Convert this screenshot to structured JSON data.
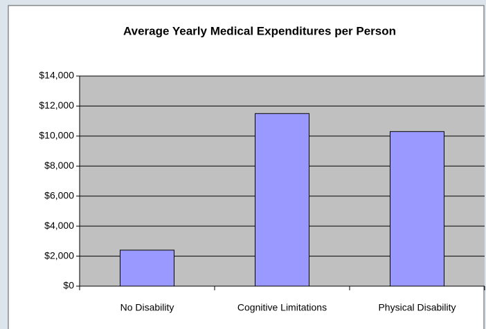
{
  "chart_data": {
    "type": "bar",
    "title": "Average Yearly Medical Expenditures per Person",
    "categories": [
      "No Disability",
      "Cognitive Limitations",
      "Physical Disability"
    ],
    "values": [
      2400,
      11500,
      10300
    ],
    "color": "#9999ff",
    "ylim": [
      0,
      14000
    ],
    "yticks": [
      {
        "value": 0,
        "label": "$0"
      },
      {
        "value": 2000,
        "label": "$2,000"
      },
      {
        "value": 4000,
        "label": "$4,000"
      },
      {
        "value": 6000,
        "label": "$6,000"
      },
      {
        "value": 8000,
        "label": "$8,000"
      },
      {
        "value": 10000,
        "label": "$10,000"
      },
      {
        "value": 12000,
        "label": "$12,000"
      },
      {
        "value": 14000,
        "label": "$14,000"
      }
    ],
    "grid": true
  }
}
